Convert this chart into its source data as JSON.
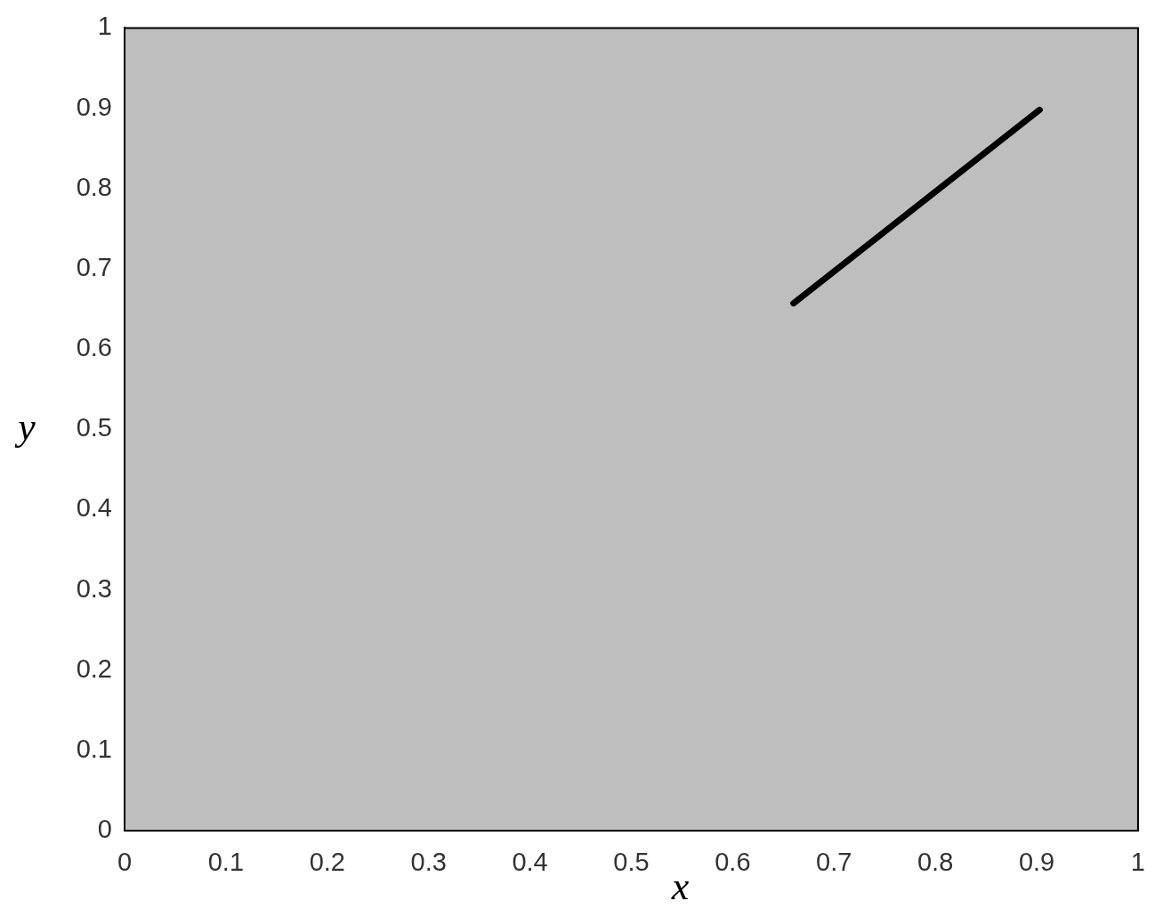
{
  "chart_data": {
    "type": "line",
    "xlabel": "x",
    "ylabel": "y",
    "x": [
      0.66,
      0.903
    ],
    "series": [
      {
        "color": "#000000",
        "values": [
          0.657,
          0.898
        ]
      }
    ],
    "xlim": [
      0,
      1
    ],
    "ylim": [
      0,
      1
    ],
    "xticks": [
      0,
      0.1,
      0.2,
      0.3,
      0.4,
      0.5,
      0.6,
      0.7,
      0.8,
      0.9,
      1
    ],
    "yticks": [
      0,
      0.1,
      0.2,
      0.3,
      0.4,
      0.5,
      0.6,
      0.7,
      0.8,
      0.9,
      1
    ],
    "marker": "none",
    "line_style": "solid"
  }
}
